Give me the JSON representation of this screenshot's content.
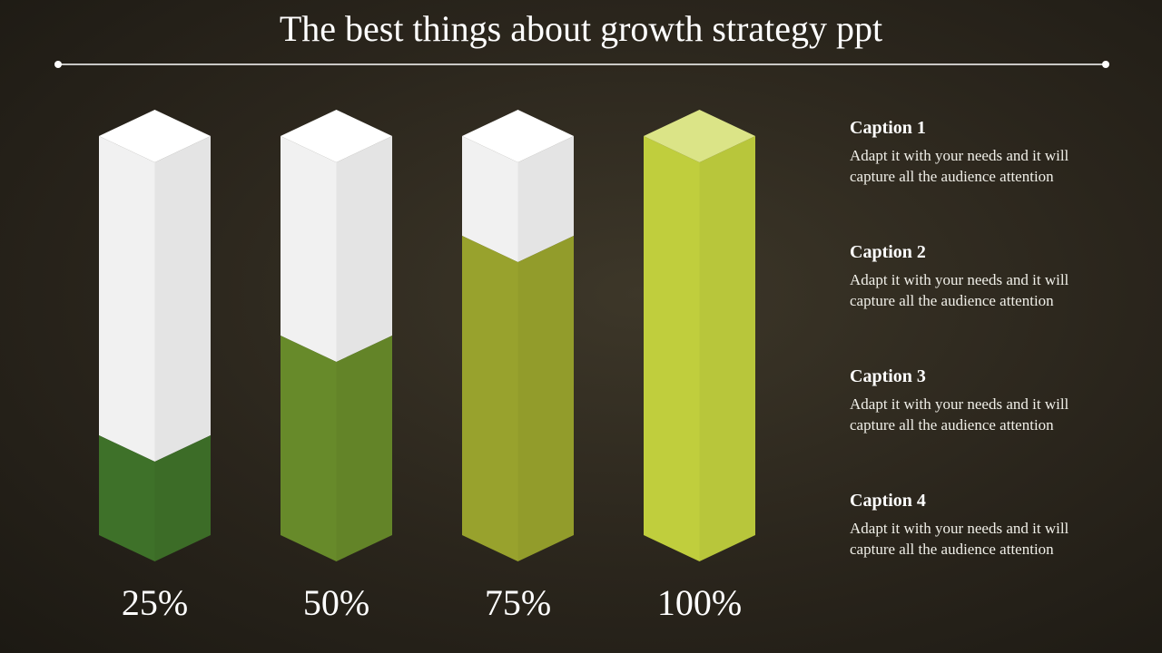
{
  "title": "The best things about growth strategy ppt",
  "chart_data": {
    "type": "bar",
    "title": "The best things about growth strategy ppt",
    "categories": [
      "25%",
      "50%",
      "75%",
      "100%"
    ],
    "values": [
      25,
      50,
      75,
      100
    ],
    "ylim": [
      0,
      100
    ],
    "xlabel": "",
    "ylabel": "",
    "colors": [
      "#3e7129",
      "#678a2a",
      "#98a22d",
      "#c0ce3d"
    ],
    "top_colors": [
      "#ffffff",
      "#ffffff",
      "#ffffff",
      "#dbe487"
    ]
  },
  "captions": [
    {
      "title": "Caption 1",
      "text": "Adapt it with your needs and it will capture all the audience attention"
    },
    {
      "title": "Caption 2",
      "text": "Adapt it with your needs and it will capture all the audience attention"
    },
    {
      "title": "Caption 3",
      "text": "Adapt it with your needs and it will capture all the audience attention"
    },
    {
      "title": "Caption 4",
      "text": "Adapt it with your needs and it will capture all the audience attention"
    }
  ]
}
